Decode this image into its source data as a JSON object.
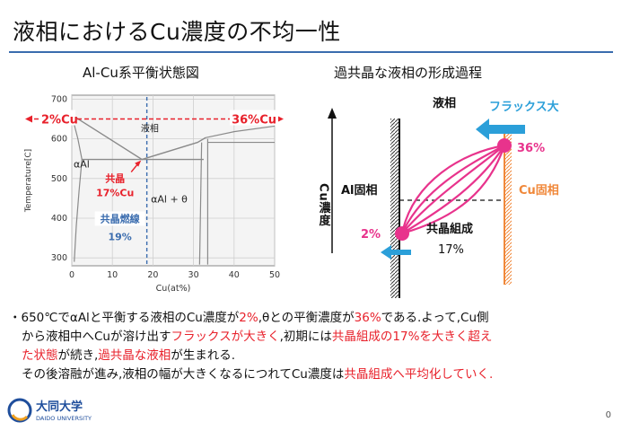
{
  "slide": {
    "title": "液相におけるCu濃度の不均一性",
    "page_number": "0"
  },
  "left_panel": {
    "heading": "Al-Cu系平衡状態図",
    "chart_data": {
      "type": "line",
      "xlabel": "Cu(at%)",
      "ylabel": "Temperature[C]",
      "xlim": [
        0,
        50
      ],
      "ylim": [
        280,
        710
      ],
      "x_ticks": [
        "0",
        "10",
        "20",
        "30",
        "40",
        "50"
      ],
      "y_ticks": [
        "300",
        "400",
        "500",
        "600",
        "700"
      ],
      "phase_labels": {
        "liquid": "液相",
        "alpha_al": "αAl",
        "alpha_theta": "αAl + θ"
      },
      "liquidus": [
        {
          "x": 0,
          "y": 660
        },
        {
          "x": 17.3,
          "y": 548
        },
        {
          "x": 31,
          "y": 591
        },
        {
          "x": 33,
          "y": 603
        }
      ],
      "reference_line": {
        "label_left": "2%Cu",
        "label_right": "36%Cu",
        "y": 650
      },
      "eutectic": {
        "label": "共晶",
        "composition_label": "17%Cu",
        "x": 17.3,
        "y": 548
      },
      "eutectic_line": {
        "label": "共晶燃線",
        "value_label": "19%",
        "x": 18.5
      }
    }
  },
  "right_panel": {
    "heading": "過共晶な液相の形成過程",
    "liquid_label": "液相",
    "flux_label": "フラックス大",
    "axis_label": "Cu濃度",
    "al_solid_label": "Al固相",
    "cu_solid_label": "Cu固相",
    "high_value": "36%",
    "low_value": "2%",
    "eutectic_label": "共晶組成",
    "eutectic_value": "17%"
  },
  "body": {
    "bullet_marker": "・",
    "line1_parts": [
      "650℃でαAlと平衡する液相のCu濃度が",
      "2%",
      ",θとの平衡濃度が",
      "36%",
      "である.よって,Cu側"
    ],
    "line2_parts": [
      "から液相中へCuが溶け出す",
      "フラックスが大きく",
      ",初期には",
      "共晶組成の17%を大きく超え"
    ],
    "line3_parts": [
      "た状態",
      "が続き,",
      "過共晶な液相",
      "が生まれる."
    ],
    "line4_parts": [
      "その後溶融が進み,液相の幅が大きくなるにつれてCu濃度は",
      "共晶組成へ平均化していく."
    ]
  },
  "logo": {
    "name": "大同大学",
    "sub": "DAIDO UNIVERSITY"
  },
  "colors": {
    "accent_blue": "#3a6cae",
    "red": "#e8212b",
    "magenta": "#e8338c",
    "arrow_blue": "#2b9fd9",
    "cu_orange": "#f0883a"
  }
}
